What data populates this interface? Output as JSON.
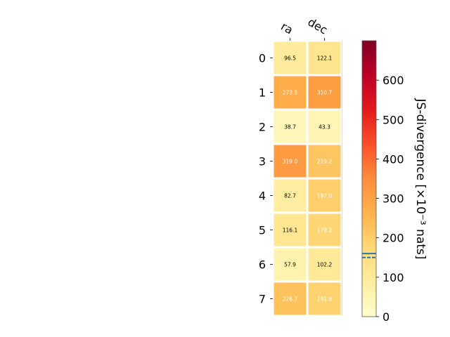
{
  "chart_data": {
    "type": "heatmap",
    "columns": [
      "ra",
      "dec"
    ],
    "rows": [
      "0",
      "1",
      "2",
      "3",
      "4",
      "5",
      "6",
      "7"
    ],
    "values": [
      [
        96.5,
        122.1
      ],
      [
        273.5,
        310.7
      ],
      [
        38.7,
        43.3
      ],
      [
        319.0,
        219.2
      ],
      [
        82.7,
        197.0
      ],
      [
        116.1,
        179.2
      ],
      [
        57.9,
        102.2
      ],
      [
        226.7,
        191.8
      ]
    ],
    "value_labels": [
      [
        "96.5",
        "122.1"
      ],
      [
        "273.5",
        "310.7"
      ],
      [
        "38.7",
        "43.3"
      ],
      [
        "319.0",
        "219.2"
      ],
      [
        "82.7",
        "197.0"
      ],
      [
        "116.1",
        "179.2"
      ],
      [
        "57.9",
        "102.2"
      ],
      [
        "226.7",
        "191.8"
      ]
    ],
    "colorbar": {
      "label": "JS-divergence [×10⁻³ nats]",
      "range": [
        0,
        700
      ],
      "ticks": [
        "0",
        "100",
        "200",
        "300",
        "400",
        "500",
        "600"
      ],
      "colormap": "YlOrRd",
      "reference_lines": [
        {
          "value": 160,
          "style": "solid",
          "color": "#1f77b4"
        },
        {
          "value": 150,
          "style": "dashed",
          "color": "#1f77b4"
        }
      ]
    },
    "grid": false,
    "legend": "none"
  }
}
